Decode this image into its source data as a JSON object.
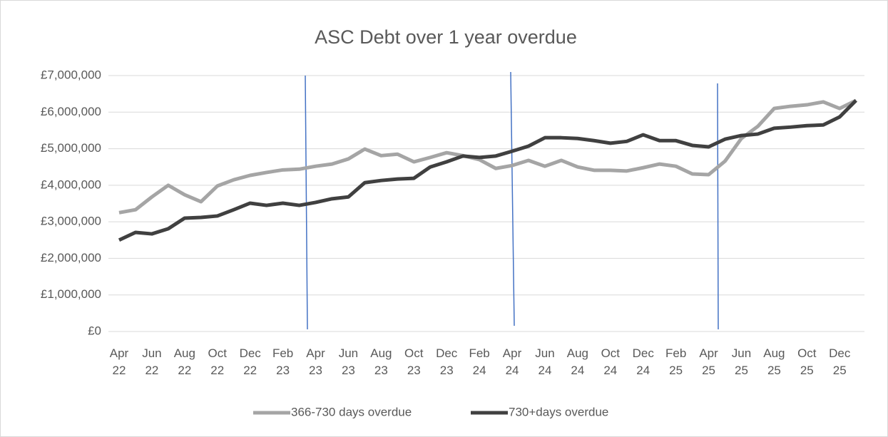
{
  "chart_data": {
    "type": "line",
    "title": "ASC Debt over 1 year overdue",
    "categories": [
      "Apr 22",
      null,
      "Jun 22",
      null,
      "Aug 22",
      null,
      "Oct 22",
      null,
      "Dec 22",
      null,
      "Feb 23",
      null,
      "Apr 23",
      null,
      "Jun 23",
      null,
      "Aug 23",
      null,
      "Oct 23",
      null,
      "Dec 23",
      null,
      "Feb 24",
      null,
      "Apr 24",
      null,
      "Jun 24",
      null,
      "Aug 24",
      null,
      "Oct 24",
      null,
      "Dec 24",
      null,
      "Feb 25",
      null,
      "Apr 25",
      null,
      "Jun 25",
      null,
      "Aug 25",
      null,
      "Oct 25",
      null,
      "Dec 25",
      null
    ],
    "series": [
      {
        "name": "366-730 days overdue",
        "color": "#a5a5a5",
        "values": [
          3250000,
          3330000,
          3680000,
          4000000,
          3740000,
          3550000,
          3980000,
          4150000,
          4270000,
          4350000,
          4420000,
          4440000,
          4520000,
          4580000,
          4720000,
          4990000,
          4810000,
          4850000,
          4640000,
          4760000,
          4890000,
          4810000,
          4700000,
          4460000,
          4540000,
          4680000,
          4520000,
          4680000,
          4500000,
          4410000,
          4410000,
          4390000,
          4480000,
          4580000,
          4520000,
          4310000,
          4290000,
          4660000,
          5280000,
          5610000,
          6100000,
          6160000,
          6200000,
          6280000,
          6100000,
          6320000
        ]
      },
      {
        "name": "730+days overdue",
        "color": "#404040",
        "values": [
          2500000,
          2710000,
          2670000,
          2810000,
          3100000,
          3120000,
          3160000,
          3330000,
          3510000,
          3450000,
          3510000,
          3450000,
          3530000,
          3630000,
          3680000,
          4070000,
          4130000,
          4170000,
          4190000,
          4500000,
          4640000,
          4800000,
          4760000,
          4800000,
          4930000,
          5070000,
          5300000,
          5300000,
          5280000,
          5220000,
          5150000,
          5200000,
          5380000,
          5220000,
          5220000,
          5090000,
          5050000,
          5260000,
          5360000,
          5400000,
          5560000,
          5590000,
          5630000,
          5650000,
          5870000,
          6320000
        ]
      }
    ],
    "ylim": [
      0,
      7000000
    ],
    "yticks": [
      {
        "value": 0,
        "label": "£0"
      },
      {
        "value": 1000000,
        "label": "£1,000,000"
      },
      {
        "value": 2000000,
        "label": "£2,000,000"
      },
      {
        "value": 3000000,
        "label": "£3,000,000"
      },
      {
        "value": 4000000,
        "label": "£4,000,000"
      },
      {
        "value": 5000000,
        "label": "£5,000,000"
      },
      {
        "value": 6000000,
        "label": "£6,000,000"
      },
      {
        "value": 7000000,
        "label": "£7,000,000"
      }
    ],
    "grid": true,
    "legend": "bottom"
  }
}
